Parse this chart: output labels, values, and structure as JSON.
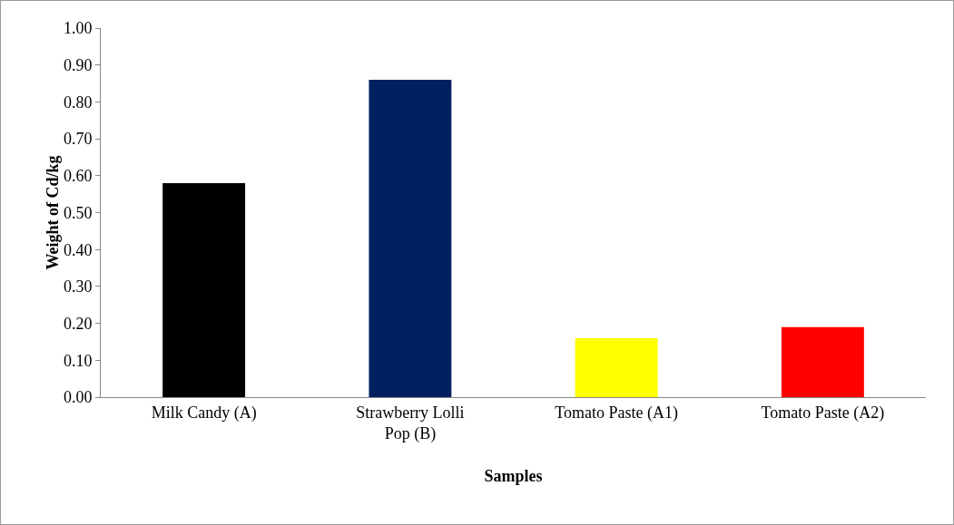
{
  "chart_data": {
    "type": "bar",
    "xlabel": "Samples",
    "ylabel": "Weight of Cd/kg",
    "categories": [
      "Milk Candy (A)",
      "Strawberry Lolli Pop (B)",
      "Tomato Paste (A1)",
      "Tomato Paste (A2)"
    ],
    "values": [
      0.58,
      0.86,
      0.16,
      0.19
    ],
    "colors": [
      "#000000",
      "#002060",
      "#ffff00",
      "#ff0000"
    ],
    "ylim": [
      0,
      1
    ],
    "yticks": [
      {
        "value": 0,
        "label": "0.00"
      },
      {
        "value": 0.1,
        "label": "0.10"
      },
      {
        "value": 0.2,
        "label": "0.20"
      },
      {
        "value": 0.3,
        "label": "0.30"
      },
      {
        "value": 0.4,
        "label": "0.40"
      },
      {
        "value": 0.5,
        "label": "0.50"
      },
      {
        "value": 0.6,
        "label": "0.60"
      },
      {
        "value": 0.7,
        "label": "0.70"
      },
      {
        "value": 0.8,
        "label": "0.80"
      },
      {
        "value": 0.9,
        "label": "0.90"
      },
      {
        "value": 1,
        "label": "1.00"
      }
    ]
  }
}
